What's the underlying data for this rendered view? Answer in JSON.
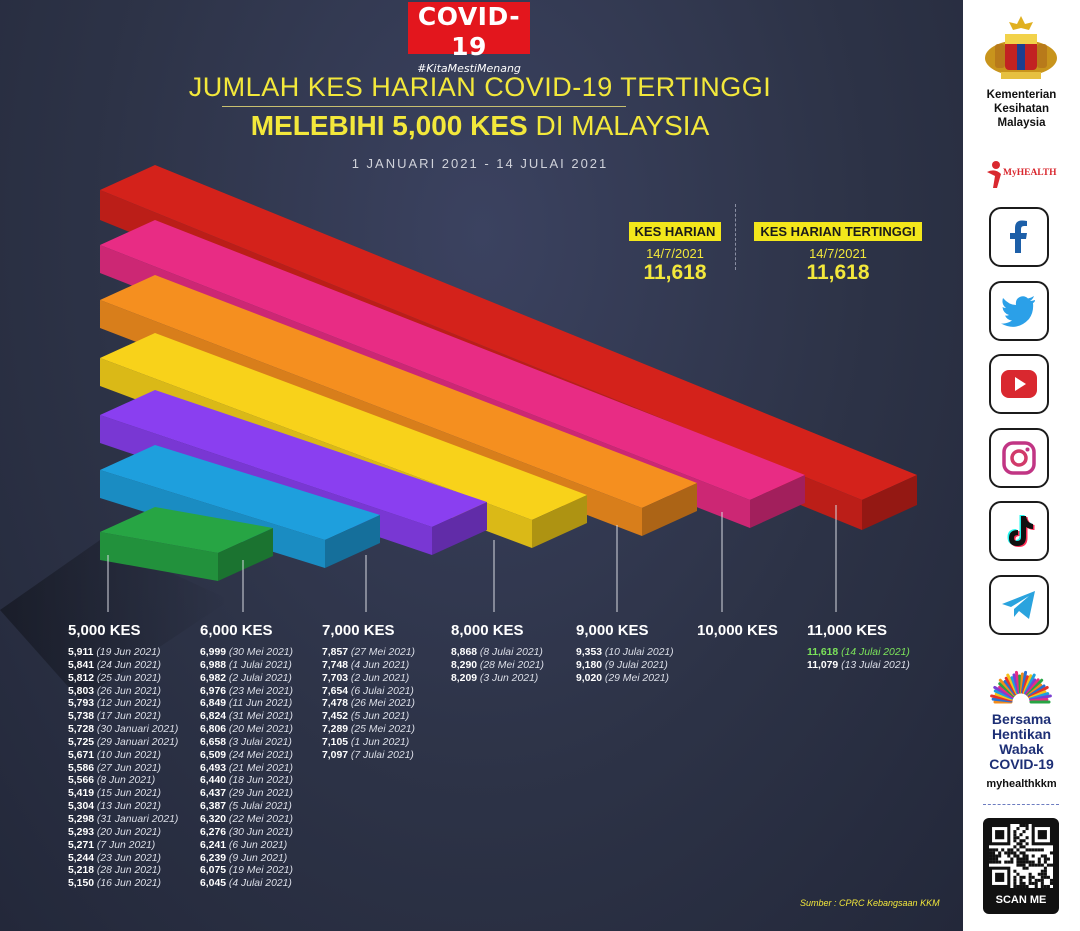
{
  "logo": {
    "title": "COVID-19",
    "hashtag": "#KitaMestiMenang"
  },
  "title": {
    "line1": "JUMLAH KES HARIAN COVID-19 TERTINGGI",
    "line2_bold": "MELEBIHI 5,000 KES",
    "line2_rest": " DI MALAYSIA",
    "date_range": "1 JANUARI 2021 - 14 JULAI 2021"
  },
  "stats": {
    "daily": {
      "label": "KES HARIAN",
      "date": "14/7/2021",
      "value": "11,618"
    },
    "highest": {
      "label": "KES HARIAN TERTINGGI",
      "date": "14/7/2021",
      "value": "11,618"
    }
  },
  "bar_colors": {
    "k5": "#27a544",
    "k6": "#1e9fdd",
    "k7": "#8a3ff0",
    "k8": "#f8d21a",
    "k9": "#f58f1f",
    "k10": "#e82c84",
    "k11": "#d4221b"
  },
  "columns": [
    {
      "heading": "5,000 KES",
      "entries": [
        {
          "v": "5,911",
          "d": "(19 Jun 2021)"
        },
        {
          "v": "5,841",
          "d": "(24 Jun 2021)"
        },
        {
          "v": "5,812",
          "d": "(25 Jun 2021)"
        },
        {
          "v": "5,803",
          "d": "(26 Jun 2021)"
        },
        {
          "v": "5,793",
          "d": "(12 Jun 2021)"
        },
        {
          "v": "5,738",
          "d": "(17 Jun 2021)"
        },
        {
          "v": "5,728",
          "d": "(30 Januari 2021)"
        },
        {
          "v": "5,725",
          "d": "(29 Januari 2021)"
        },
        {
          "v": "5,671",
          "d": "(10 Jun 2021)"
        },
        {
          "v": "5,586",
          "d": "(27 Jun 2021)"
        },
        {
          "v": "5,566",
          "d": "(8 Jun 2021)"
        },
        {
          "v": "5,419",
          "d": "(15 Jun 2021)"
        },
        {
          "v": "5,304",
          "d": "(13 Jun 2021)"
        },
        {
          "v": "5,298",
          "d": "(31 Januari 2021)"
        },
        {
          "v": "5,293",
          "d": "(20 Jun 2021)"
        },
        {
          "v": "5,271",
          "d": "(7 Jun 2021)"
        },
        {
          "v": "5,244",
          "d": "(23 Jun 2021)"
        },
        {
          "v": "5,218",
          "d": "(28 Jun 2021)"
        },
        {
          "v": "5,150",
          "d": "(16 Jun 2021)"
        }
      ]
    },
    {
      "heading": "6,000 KES",
      "entries": [
        {
          "v": "6,999",
          "d": "(30 Mei 2021)"
        },
        {
          "v": "6,988",
          "d": "(1 Julai 2021)"
        },
        {
          "v": "6,982",
          "d": "(2 Julai 2021)"
        },
        {
          "v": "6,976",
          "d": "(23 Mei 2021)"
        },
        {
          "v": "6,849",
          "d": "(11 Jun 2021)"
        },
        {
          "v": "6,824",
          "d": "(31 Mei 2021)"
        },
        {
          "v": "6,806",
          "d": "(20 Mei 2021)"
        },
        {
          "v": "6,658",
          "d": "(3 Julai 2021)"
        },
        {
          "v": "6,509",
          "d": "(24 Mei 2021)"
        },
        {
          "v": "6,493",
          "d": "(21 Mei 2021)"
        },
        {
          "v": "6,440",
          "d": "(18 Jun 2021)"
        },
        {
          "v": "6,437",
          "d": "(29 Jun 2021)"
        },
        {
          "v": "6,387",
          "d": "(5 Julai 2021)"
        },
        {
          "v": "6,320",
          "d": "(22 Mei 2021)"
        },
        {
          "v": "6,276",
          "d": "(30 Jun 2021)"
        },
        {
          "v": "6,241",
          "d": "(6 Jun 2021)"
        },
        {
          "v": "6,239",
          "d": "(9 Jun 2021)"
        },
        {
          "v": "6,075",
          "d": "(19 Mei 2021)"
        },
        {
          "v": "6,045",
          "d": "(4 Julai 2021)"
        }
      ]
    },
    {
      "heading": "7,000 KES",
      "entries": [
        {
          "v": "7,857",
          "d": "(27 Mei 2021)"
        },
        {
          "v": "7,748",
          "d": "(4 Jun 2021)"
        },
        {
          "v": "7,703",
          "d": "(2 Jun 2021)"
        },
        {
          "v": "7,654",
          "d": "(6 Julai 2021)"
        },
        {
          "v": "7,478",
          "d": "(26 Mei 2021)"
        },
        {
          "v": "7,452",
          "d": "(5 Jun 2021)"
        },
        {
          "v": "7,289",
          "d": "(25 Mei 2021)"
        },
        {
          "v": "7,105",
          "d": "(1 Jun 2021)"
        },
        {
          "v": "7,097",
          "d": "(7 Julai 2021)"
        }
      ]
    },
    {
      "heading": "8,000 KES",
      "entries": [
        {
          "v": "8,868",
          "d": "(8 Julai 2021)"
        },
        {
          "v": "8,290",
          "d": "(28 Mei 2021)"
        },
        {
          "v": "8,209",
          "d": "(3 Jun 2021)"
        }
      ]
    },
    {
      "heading": "9,000 KES",
      "entries": [
        {
          "v": "9,353",
          "d": "(10 Julai 2021)"
        },
        {
          "v": "9,180",
          "d": "(9 Julai 2021)"
        },
        {
          "v": "9,020",
          "d": "(29 Mei 2021)"
        }
      ]
    },
    {
      "heading": "10,000 KES",
      "entries": []
    },
    {
      "heading": "11,000 KES",
      "entries": [
        {
          "v": "11,618",
          "d": "(14 Julai 2021)",
          "highlight": true
        },
        {
          "v": "11,079",
          "d": "(13 Julai 2021)"
        }
      ]
    }
  ],
  "source": "Sumber : CPRC Kebangsaan KKM",
  "sidebar": {
    "ministry_line1": "Kementerian",
    "ministry_line2": "Kesihatan",
    "ministry_line3": "Malaysia",
    "myhealth": "MyHEALTH",
    "social_icons": [
      "facebook-icon",
      "twitter-icon",
      "youtube-icon",
      "instagram-icon",
      "tiktok-icon",
      "telegram-icon"
    ],
    "campaign_line1": "Bersama",
    "campaign_line2": "Hentikan",
    "campaign_line3": "Wabak",
    "campaign_line4": "COVID-19",
    "campaign_handle": "myhealthkkm",
    "scan_label": "SCAN ME"
  }
}
